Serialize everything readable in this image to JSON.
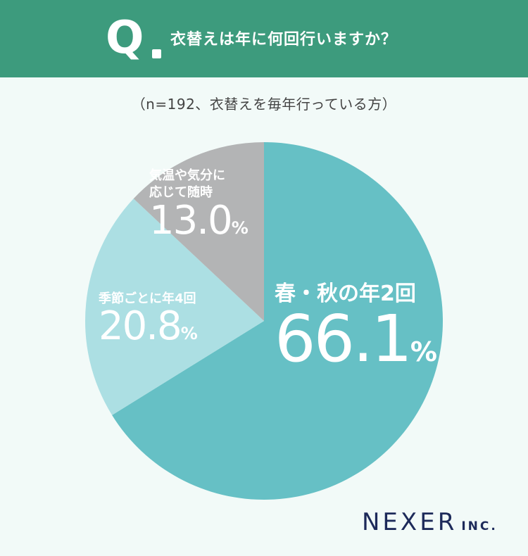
{
  "header": {
    "q_mark": "Q",
    "question": "衣替えは年に何回行いますか？"
  },
  "subtitle": "（n=192、衣替えを毎年行っている方）",
  "chart_data": {
    "type": "pie",
    "start_angle_deg": 0,
    "direction": "clockwise",
    "slices": [
      {
        "label": "春・秋の年2回",
        "value": 66.1,
        "value_text": "66.1",
        "unit": "%",
        "color": "#66c0c5"
      },
      {
        "label": "季節ごとに年4回",
        "value": 20.8,
        "value_text": "20.8",
        "unit": "%",
        "color": "#acdfe3"
      },
      {
        "label": "気温や気分に\n応じて随時",
        "value": 13.0,
        "value_text": "13.0",
        "unit": "%",
        "color": "#b3b4b5"
      }
    ]
  },
  "colors": {
    "header_bg": "#3d9b7d",
    "background": "#f2faf8",
    "logo": "#1d2a5a"
  },
  "logo": {
    "main": "NEXER",
    "sub": "INC."
  }
}
